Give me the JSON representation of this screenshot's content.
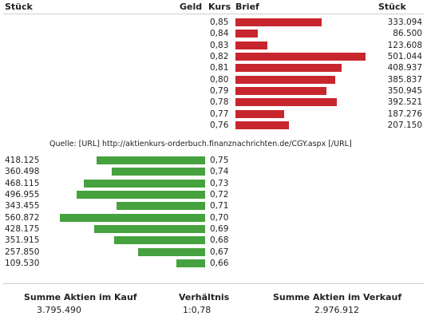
{
  "header": {
    "stueck_left": "Stück",
    "geld": "Geld",
    "kurs": "Kurs",
    "brief": "Brief",
    "stueck_right": "Stück"
  },
  "colors": {
    "ask_bar": "#c8262e",
    "bid_bar": "#46a23e",
    "rule": "#cfcfcf"
  },
  "ask_orders": [
    {
      "kurs": "0,85",
      "stueck": "333.094",
      "volume": 333094
    },
    {
      "kurs": "0,84",
      "stueck": "86.500",
      "volume": 86500
    },
    {
      "kurs": "0,83",
      "stueck": "123.608",
      "volume": 123608
    },
    {
      "kurs": "0,82",
      "stueck": "501.044",
      "volume": 501044
    },
    {
      "kurs": "0,81",
      "stueck": "408.937",
      "volume": 408937
    },
    {
      "kurs": "0,80",
      "stueck": "385.837",
      "volume": 385837
    },
    {
      "kurs": "0,79",
      "stueck": "350.945",
      "volume": 350945
    },
    {
      "kurs": "0,78",
      "stueck": "392.521",
      "volume": 392521
    },
    {
      "kurs": "0,77",
      "stueck": "187.276",
      "volume": 187276
    },
    {
      "kurs": "0,76",
      "stueck": "207.150",
      "volume": 207150
    }
  ],
  "source": "Quelle: [URL] http://aktienkurs-orderbuch.finanznachrichten.de/CGY.aspx [/URL]",
  "bid_orders": [
    {
      "kurs": "0,75",
      "stueck": "418.125",
      "volume": 418125
    },
    {
      "kurs": "0,74",
      "stueck": "360.498",
      "volume": 360498
    },
    {
      "kurs": "0,73",
      "stueck": "468.115",
      "volume": 468115
    },
    {
      "kurs": "0,72",
      "stueck": "496.955",
      "volume": 496955
    },
    {
      "kurs": "0,71",
      "stueck": "343.455",
      "volume": 343455
    },
    {
      "kurs": "0,70",
      "stueck": "560.872",
      "volume": 560872
    },
    {
      "kurs": "0,69",
      "stueck": "428.175",
      "volume": 428175
    },
    {
      "kurs": "0,68",
      "stueck": "351.915",
      "volume": 351915
    },
    {
      "kurs": "0,67",
      "stueck": "257.850",
      "volume": 257850
    },
    {
      "kurs": "0,66",
      "stueck": "109.530",
      "volume": 109530
    }
  ],
  "summary": {
    "kauf_label": "Summe Aktien im Kauf",
    "kauf_value": "3.795.490",
    "ratio_label": "Verhältnis",
    "ratio_value": "1:0,78",
    "verkauf_label": "Summe Aktien im Verkauf",
    "verkauf_value": "2.976.912"
  }
}
